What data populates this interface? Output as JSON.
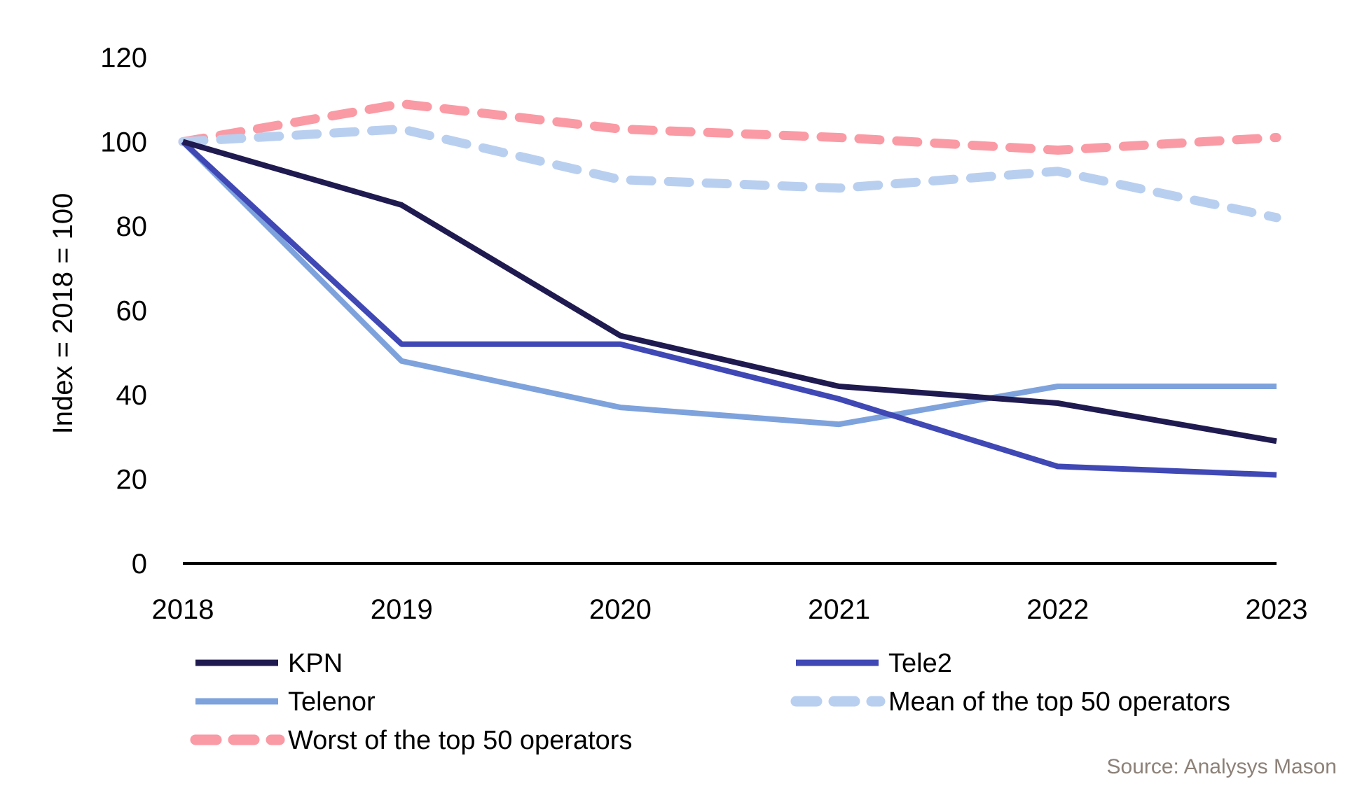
{
  "chart_data": {
    "type": "line",
    "title": "",
    "xlabel": "",
    "ylabel": "Index = 2018 = 100",
    "x": [
      "2018",
      "2019",
      "2020",
      "2021",
      "2022",
      "2023"
    ],
    "ylim": [
      0,
      120
    ],
    "yticks": [
      "0",
      "20",
      "40",
      "60",
      "80",
      "100",
      "120"
    ],
    "grid": false,
    "legend_position": "bottom",
    "series": [
      {
        "name": "KPN",
        "values": [
          100,
          85,
          54,
          42,
          38,
          29
        ],
        "color": "#1f1a4f",
        "dashed": false
      },
      {
        "name": "Tele2",
        "values": [
          100,
          52,
          52,
          39,
          23,
          21
        ],
        "color": "#3f48b4",
        "dashed": false
      },
      {
        "name": "Telenor",
        "values": [
          100,
          48,
          37,
          33,
          42,
          42
        ],
        "color": "#7ea2dc",
        "dashed": false
      },
      {
        "name": "Mean of the top 50 operators",
        "values": [
          100,
          103,
          91,
          89,
          93,
          82
        ],
        "color": "#b9cff0",
        "dashed": true
      },
      {
        "name": "Worst of the top 50 operators",
        "values": [
          100,
          109,
          103,
          101,
          98,
          101
        ],
        "color": "#fa9aa4",
        "dashed": true
      }
    ]
  },
  "source": "Source: Analysys Mason"
}
